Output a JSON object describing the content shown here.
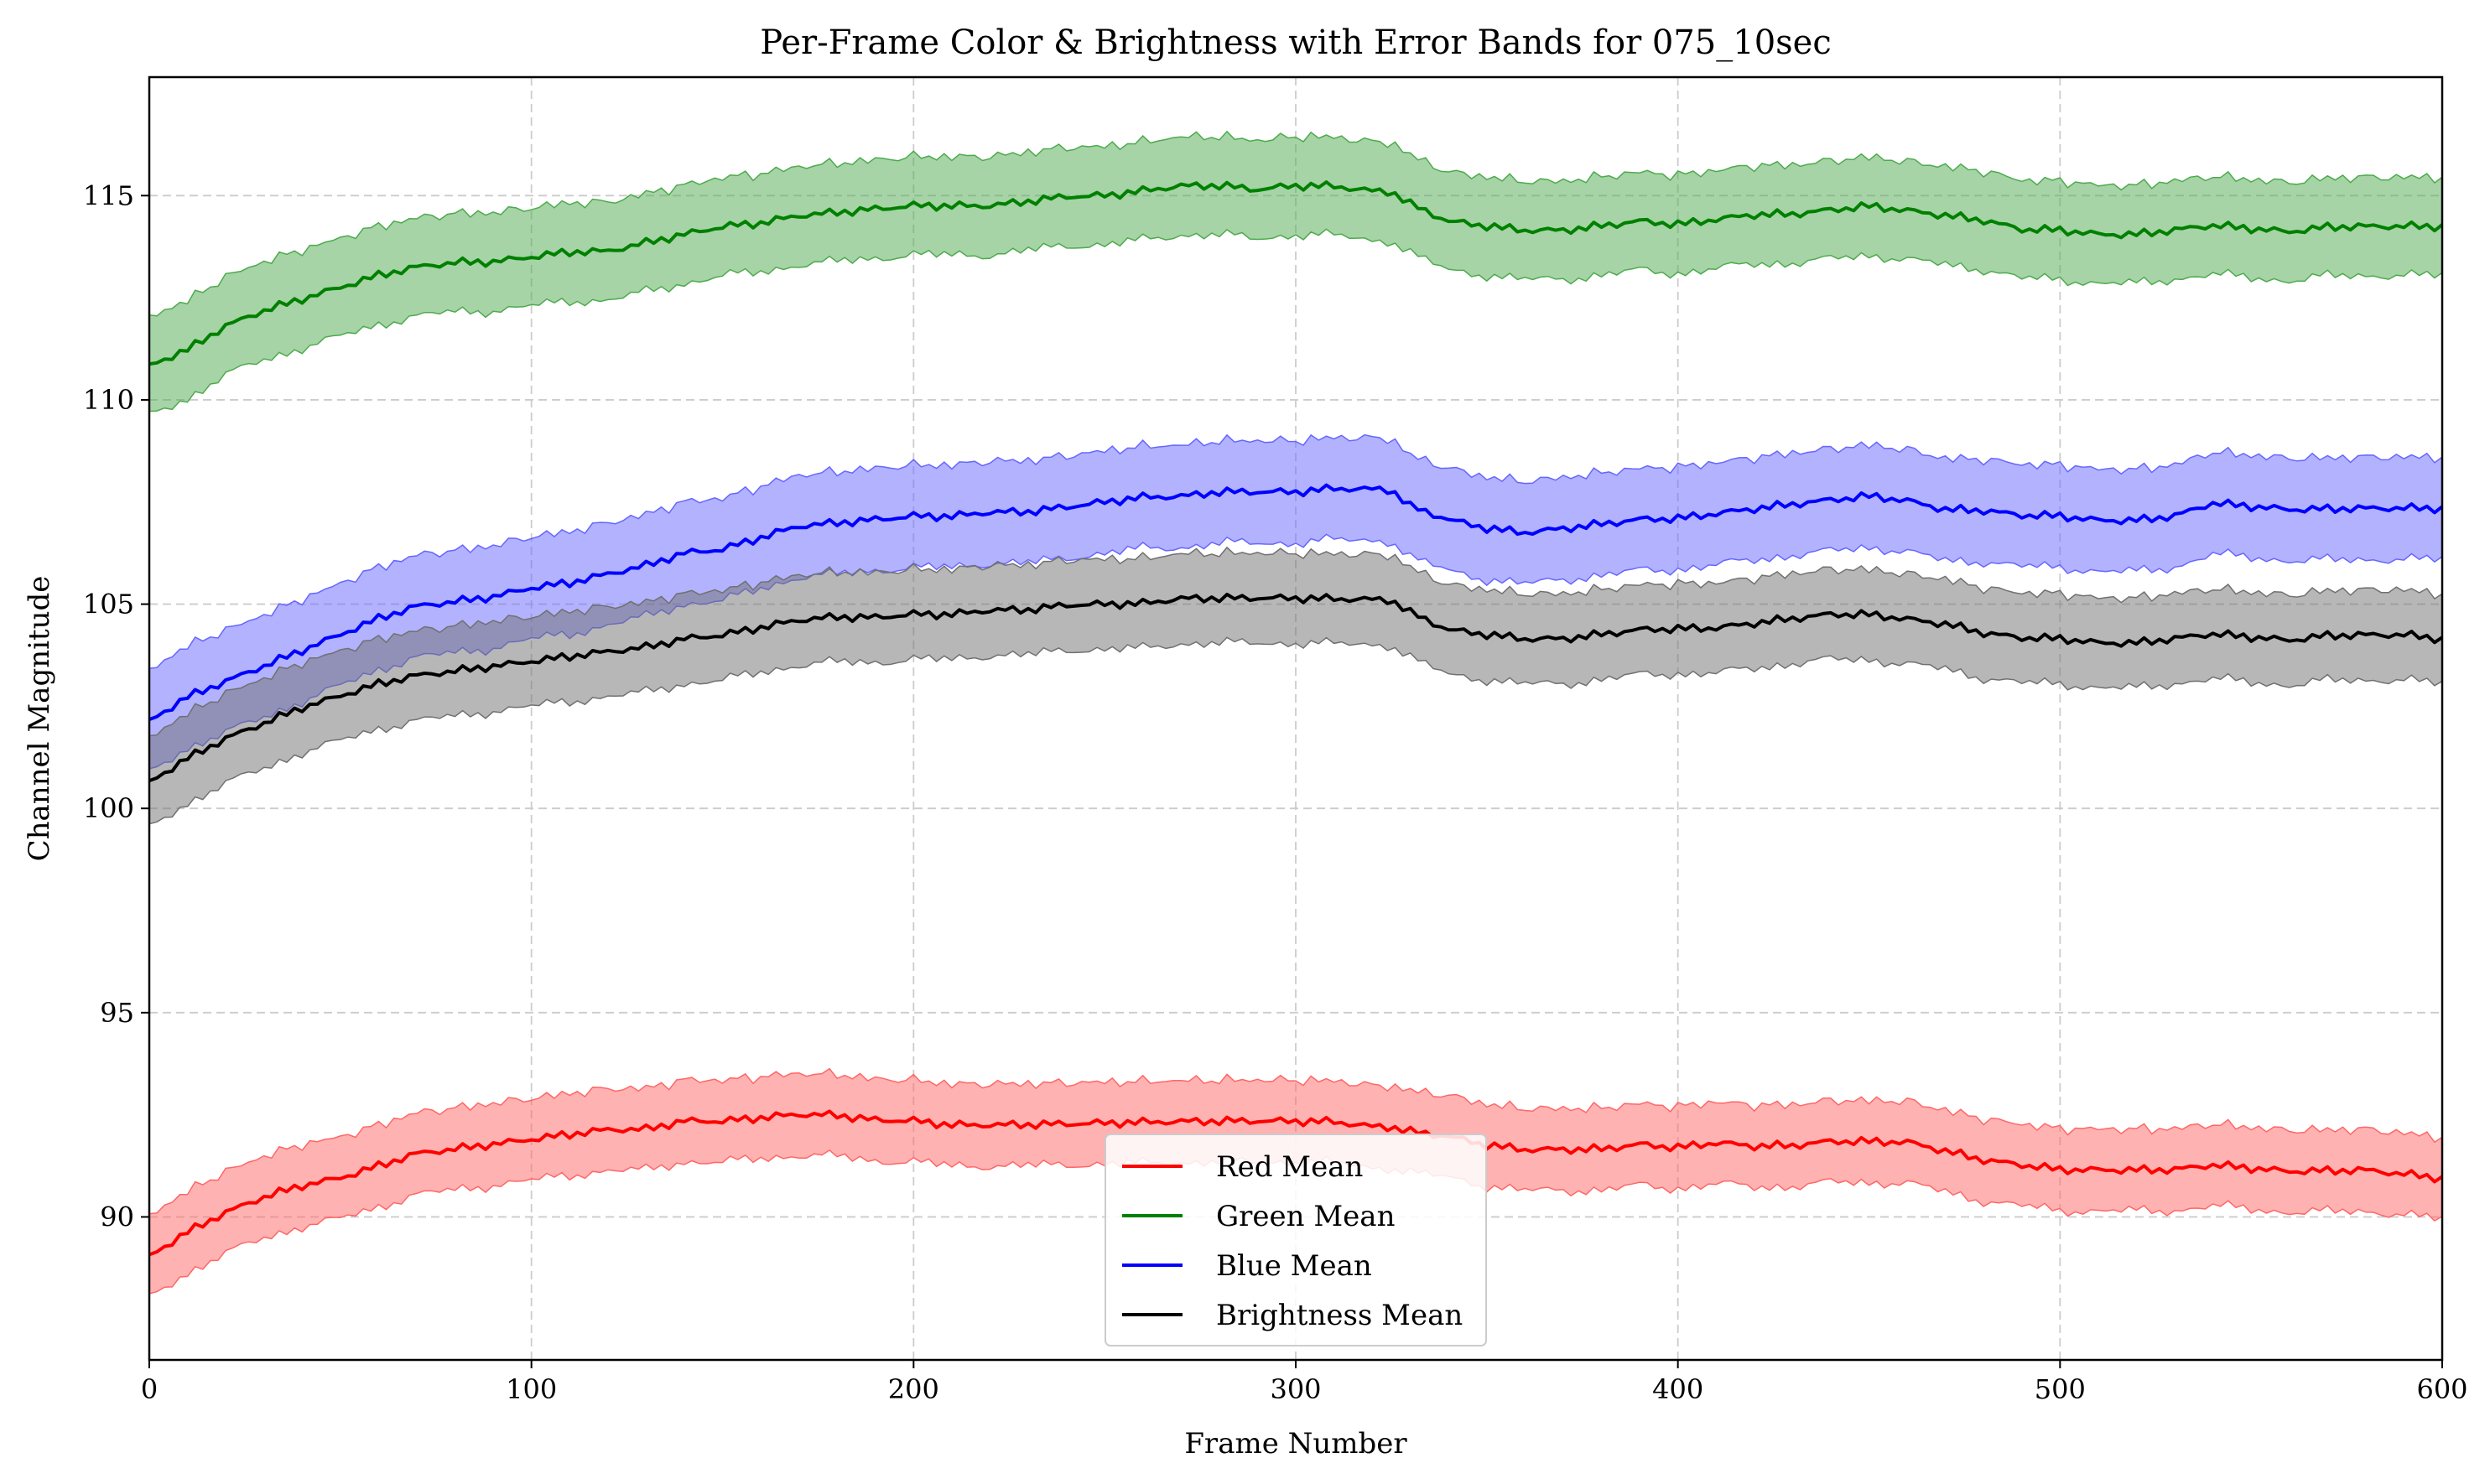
{
  "chart_data": {
    "type": "line",
    "title": "Per-Frame Color & Brightness with Error Bands for 075_10sec",
    "xlabel": "Frame Number",
    "ylabel": "Channel Magnitude",
    "xlim": [
      0,
      600
    ],
    "ylim": [
      86.5,
      117.9
    ],
    "x_ticks": [
      0,
      100,
      200,
      300,
      400,
      500,
      600
    ],
    "y_ticks": [
      90,
      95,
      100,
      105,
      110,
      115
    ],
    "grid": true,
    "legend_position": "bottom-center",
    "x": [
      0,
      10,
      20,
      30,
      40,
      50,
      60,
      70,
      80,
      90,
      100,
      110,
      120,
      130,
      140,
      150,
      160,
      170,
      180,
      190,
      200,
      210,
      220,
      230,
      240,
      250,
      260,
      270,
      280,
      290,
      300,
      310,
      320,
      325,
      330,
      340,
      350,
      360,
      370,
      380,
      390,
      400,
      410,
      420,
      430,
      440,
      450,
      460,
      470,
      480,
      490,
      500,
      510,
      520,
      530,
      540,
      550,
      560,
      570,
      580,
      590,
      600
    ],
    "series": [
      {
        "name": "Red Mean",
        "color": "#ff0000",
        "band_color": "#ff6666",
        "band_halfwidth": 1.0,
        "values": [
          89.0,
          89.6,
          90.1,
          90.5,
          90.8,
          91.0,
          91.3,
          91.6,
          91.7,
          91.8,
          91.9,
          92.0,
          92.1,
          92.1,
          92.3,
          92.3,
          92.4,
          92.5,
          92.5,
          92.4,
          92.4,
          92.3,
          92.3,
          92.3,
          92.3,
          92.3,
          92.3,
          92.3,
          92.3,
          92.3,
          92.3,
          92.3,
          92.2,
          92.2,
          92.1,
          92.0,
          91.8,
          91.7,
          91.7,
          91.7,
          91.8,
          91.7,
          91.8,
          91.7,
          91.7,
          91.8,
          91.8,
          91.8,
          91.6,
          91.4,
          91.3,
          91.2,
          91.2,
          91.2,
          91.2,
          91.3,
          91.2,
          91.1,
          91.1,
          91.1,
          91.0,
          90.9
        ]
      },
      {
        "name": "Green Mean",
        "color": "#008000",
        "band_color": "#4daa4d",
        "band_halfwidth": 1.2,
        "values": [
          110.8,
          111.2,
          111.8,
          112.2,
          112.5,
          112.8,
          113.1,
          113.3,
          113.4,
          113.4,
          113.5,
          113.6,
          113.6,
          113.8,
          114.0,
          114.2,
          114.3,
          114.5,
          114.6,
          114.7,
          114.8,
          114.8,
          114.8,
          114.9,
          115.0,
          115.0,
          115.1,
          115.2,
          115.2,
          115.1,
          115.2,
          115.2,
          115.1,
          115.1,
          114.8,
          114.4,
          114.3,
          114.2,
          114.2,
          114.3,
          114.4,
          114.3,
          114.4,
          114.5,
          114.5,
          114.6,
          114.7,
          114.6,
          114.5,
          114.4,
          114.2,
          114.2,
          114.1,
          114.1,
          114.2,
          114.3,
          114.2,
          114.1,
          114.2,
          114.2,
          114.2,
          114.2
        ]
      },
      {
        "name": "Blue Mean",
        "color": "#0000ff",
        "band_color": "#6666ff",
        "band_halfwidth": 1.25,
        "values": [
          102.1,
          102.7,
          103.1,
          103.5,
          103.9,
          104.3,
          104.7,
          105.0,
          105.1,
          105.2,
          105.4,
          105.5,
          105.7,
          105.9,
          106.2,
          106.3,
          106.6,
          106.9,
          107.0,
          107.1,
          107.2,
          107.2,
          107.3,
          107.3,
          107.4,
          107.5,
          107.6,
          107.6,
          107.7,
          107.7,
          107.7,
          107.8,
          107.8,
          107.8,
          107.4,
          107.1,
          106.9,
          106.8,
          106.9,
          107.0,
          107.1,
          107.1,
          107.2,
          107.3,
          107.4,
          107.5,
          107.6,
          107.5,
          107.3,
          107.3,
          107.2,
          107.2,
          107.1,
          107.1,
          107.2,
          107.5,
          107.4,
          107.3,
          107.3,
          107.3,
          107.3,
          107.3
        ]
      },
      {
        "name": "Brightness Mean",
        "color": "#000000",
        "band_color": "#707070",
        "band_halfwidth": 1.1,
        "values": [
          100.6,
          101.2,
          101.7,
          102.1,
          102.5,
          102.8,
          103.1,
          103.3,
          103.4,
          103.5,
          103.6,
          103.7,
          103.8,
          103.9,
          104.1,
          104.2,
          104.4,
          104.6,
          104.7,
          104.7,
          104.8,
          104.8,
          104.9,
          104.9,
          105.0,
          105.0,
          105.0,
          105.1,
          105.1,
          105.1,
          105.1,
          105.1,
          105.1,
          105.1,
          104.8,
          104.4,
          104.3,
          104.2,
          104.2,
          104.3,
          104.4,
          104.4,
          104.4,
          104.5,
          104.6,
          104.7,
          104.7,
          104.6,
          104.5,
          104.3,
          104.2,
          104.2,
          104.1,
          104.1,
          104.2,
          104.3,
          104.2,
          104.1,
          104.2,
          104.2,
          104.2,
          104.1
        ]
      }
    ]
  }
}
